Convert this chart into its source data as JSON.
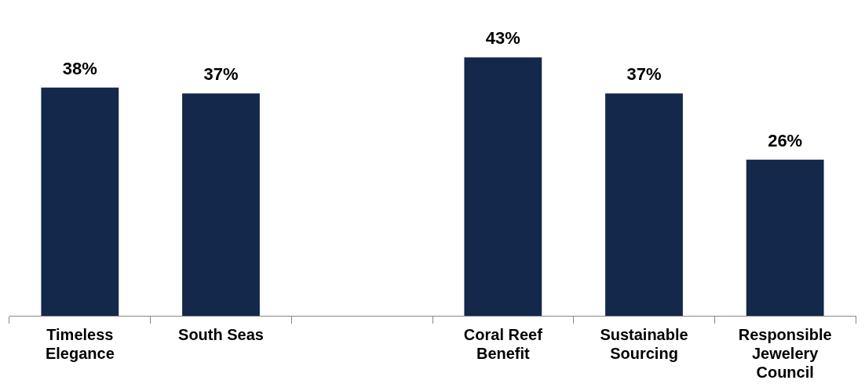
{
  "chart_data": {
    "type": "bar",
    "categories": [
      "Timeless Elegance",
      "South Seas",
      null,
      "Coral Reef Benefit",
      "Sustainable Sourcing",
      "Responsible Jewelery Council"
    ],
    "values": [
      38,
      37,
      null,
      43,
      37,
      26
    ],
    "value_labels": [
      "38%",
      "37%",
      null,
      "43%",
      "37%",
      "26%"
    ],
    "color": "#13284a",
    "legend": false
  }
}
